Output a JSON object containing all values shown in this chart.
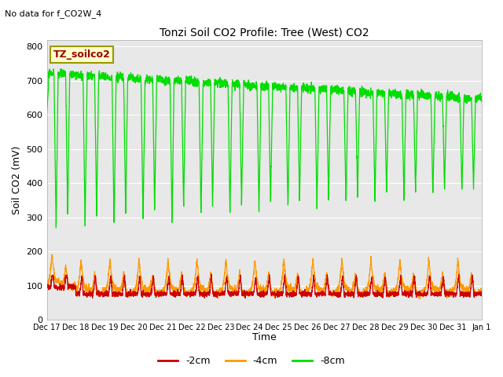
{
  "title": "Tonzi Soil CO2 Profile: Tree (West) CO2",
  "subtitle": "No data for f_CO2W_4",
  "ylabel": "Soil CO2 (mV)",
  "xlabel": "Time",
  "ylim": [
    0,
    820
  ],
  "yticks": [
    0,
    100,
    200,
    300,
    400,
    500,
    600,
    700,
    800
  ],
  "bg_color": "#e8e8e8",
  "line_2cm_color": "#cc0000",
  "line_4cm_color": "#ff9900",
  "line_8cm_color": "#00dd00",
  "legend_box_color": "#ffffcc",
  "legend_box_edge": "#999900",
  "legend_label": "TZ_soilco2",
  "x_tick_labels": [
    "Dec 17",
    "Dec 18",
    "Dec 19",
    "Dec 20",
    "Dec 21",
    "Dec 22",
    "Dec 23",
    "Dec 24",
    "Dec 25",
    "Dec 26",
    "Dec 27",
    "Dec 28",
    "Dec 29",
    "Dec 30",
    "Dec 31",
    "Jan 1"
  ],
  "n_days": 15,
  "n_pts": 240
}
